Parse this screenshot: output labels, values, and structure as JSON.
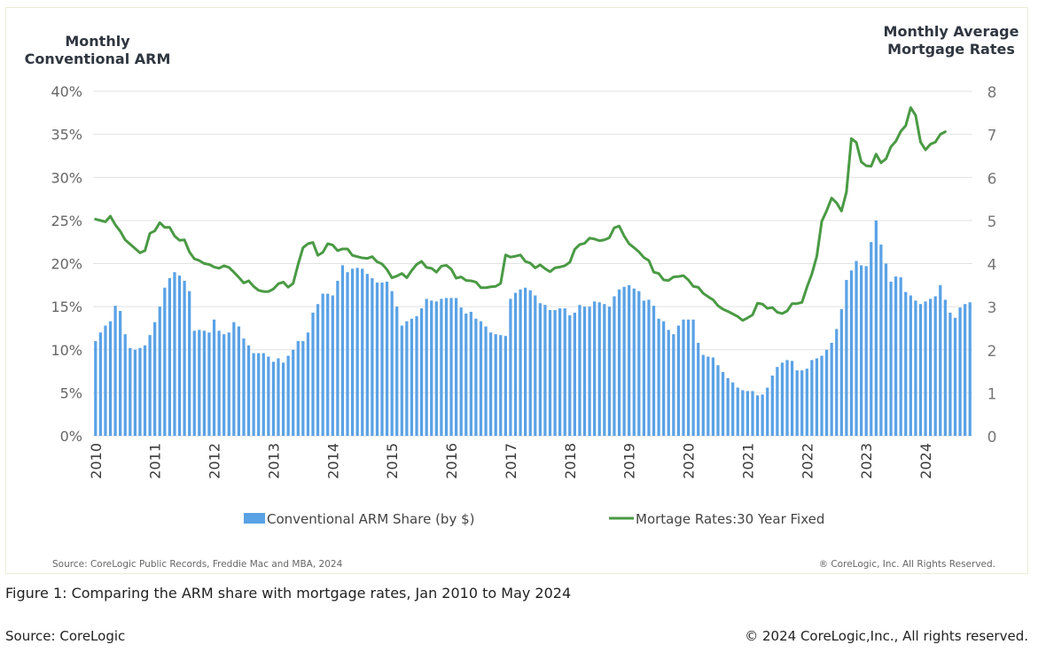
{
  "chart_data": {
    "type": "bar+line",
    "left_axis_title": [
      "Monthly",
      "Conventional ARM"
    ],
    "right_axis_title": [
      "Monthly Average",
      "Mortgage Rates"
    ],
    "left_axis": {
      "min": 0,
      "max": 40,
      "ticks": [
        "0%",
        "5%",
        "10%",
        "15%",
        "20%",
        "25%",
        "30%",
        "35%",
        "40%"
      ]
    },
    "right_axis": {
      "min": 0,
      "max": 8,
      "ticks": [
        "0",
        "1",
        "2",
        "3",
        "4",
        "5",
        "6",
        "7",
        "8"
      ]
    },
    "x_axis": {
      "start": "Jan 2010",
      "end": "May 2024",
      "ticks": [
        "2010",
        "2011",
        "2012",
        "2013",
        "2014",
        "2015",
        "2016",
        "2017",
        "2018",
        "2019",
        "2020",
        "2021",
        "2022",
        "2023",
        "2024"
      ]
    },
    "legend": [
      "Conventional ARM Share (by $)",
      "Mortage Rates:30 Year Fixed"
    ],
    "colors": {
      "bars": "#5aa2e6",
      "line": "#4a9a44",
      "grid": "#e2e2e2",
      "axis_text": "#666666"
    },
    "series": [
      {
        "name": "Conventional ARM Share (by $)",
        "axis": "left",
        "values": [
          11,
          12,
          12.8,
          13.3,
          15.1,
          14.5,
          11.8,
          10.2,
          10,
          10.2,
          10.5,
          11.7,
          13.2,
          15,
          17.2,
          18.3,
          19,
          18.6,
          18,
          16.8,
          12.2,
          12.3,
          12.2,
          12,
          13.5,
          12.2,
          11.8,
          12,
          13.2,
          12.7,
          11.3,
          10.5,
          9.6,
          9.6,
          9.6,
          9.2,
          8.6,
          9,
          8.5,
          9.3,
          10,
          11,
          11,
          12,
          14.3,
          15.3,
          16.5,
          16.5,
          16.3,
          18,
          19.8,
          19,
          19.4,
          19.5,
          19.4,
          18.8,
          18.3,
          17.8,
          17.8,
          17.9,
          16.8,
          15,
          12.8,
          13.3,
          13.6,
          13.9,
          14.8,
          15.9,
          15.7,
          15.6,
          15.9,
          16,
          16,
          16,
          14.9,
          14.2,
          14.4,
          13.6,
          13.3,
          12.7,
          12,
          11.8,
          11.7,
          11.6,
          15.9,
          16.6,
          17,
          17.2,
          16.9,
          16.3,
          15.4,
          15.2,
          14.6,
          14.6,
          14.8,
          14.8,
          14,
          14.3,
          15.2,
          15,
          15,
          15.6,
          15.5,
          15.3,
          15,
          16.2,
          17,
          17.3,
          17.5,
          17.1,
          16.8,
          15.7,
          15.8,
          15.1,
          13.6,
          13.3,
          12.3,
          11.8,
          12.8,
          13.5,
          13.5,
          13.5,
          10.8,
          9.4,
          9.2,
          9.1,
          8.2,
          7.4,
          6.7,
          6.2,
          5.6,
          5.3,
          5.2,
          5.2,
          4.7,
          4.8,
          5.6,
          7,
          8,
          8.5,
          8.8,
          8.7,
          7.6,
          7.6,
          7.8,
          8.8,
          9,
          9.3,
          10,
          10.8,
          12.4,
          14.7,
          18.1,
          19.2,
          20.3,
          19.8,
          19.7,
          22.5,
          25,
          22.2,
          20,
          17.9,
          18.5,
          18.4,
          16.7,
          16.3,
          15.7,
          15.3,
          15.6,
          15.9,
          16.2,
          17.5,
          15.8,
          14.3,
          13.7,
          14.9,
          15.3,
          15.5
        ]
      },
      {
        "name": "Mortage Rates:30 Year Fixed",
        "axis": "right",
        "values": [
          5.03,
          5.0,
          4.97,
          5.1,
          4.9,
          4.75,
          4.55,
          4.45,
          4.35,
          4.25,
          4.3,
          4.7,
          4.76,
          4.95,
          4.84,
          4.84,
          4.64,
          4.54,
          4.55,
          4.27,
          4.11,
          4.07,
          4.0,
          3.98,
          3.92,
          3.89,
          3.95,
          3.91,
          3.8,
          3.68,
          3.55,
          3.6,
          3.47,
          3.38,
          3.35,
          3.35,
          3.41,
          3.53,
          3.57,
          3.45,
          3.54,
          3.98,
          4.37,
          4.46,
          4.49,
          4.19,
          4.26,
          4.46,
          4.43,
          4.3,
          4.34,
          4.34,
          4.19,
          4.16,
          4.13,
          4.12,
          4.16,
          4.04,
          3.99,
          3.86,
          3.67,
          3.71,
          3.77,
          3.67,
          3.84,
          3.98,
          4.05,
          3.91,
          3.89,
          3.8,
          3.94,
          3.96,
          3.87,
          3.66,
          3.69,
          3.61,
          3.6,
          3.57,
          3.44,
          3.44,
          3.46,
          3.47,
          3.54,
          4.2,
          4.15,
          4.17,
          4.2,
          4.05,
          4.01,
          3.9,
          3.97,
          3.88,
          3.81,
          3.9,
          3.92,
          3.95,
          4.03,
          4.33,
          4.44,
          4.47,
          4.59,
          4.57,
          4.53,
          4.55,
          4.6,
          4.83,
          4.87,
          4.64,
          4.46,
          4.37,
          4.27,
          4.14,
          4.07,
          3.8,
          3.77,
          3.62,
          3.61,
          3.69,
          3.7,
          3.72,
          3.62,
          3.47,
          3.45,
          3.31,
          3.23,
          3.16,
          3.02,
          2.94,
          2.89,
          2.83,
          2.77,
          2.68,
          2.74,
          2.81,
          3.08,
          3.06,
          2.96,
          2.98,
          2.87,
          2.84,
          2.9,
          3.07,
          3.07,
          3.1,
          3.45,
          3.76,
          4.17,
          4.98,
          5.23,
          5.52,
          5.41,
          5.22,
          5.66,
          6.9,
          6.81,
          6.36,
          6.27,
          6.26,
          6.54,
          6.34,
          6.43,
          6.71,
          6.84,
          7.07,
          7.2,
          7.62,
          7.44,
          6.82,
          6.64,
          6.77,
          6.82,
          7.0,
          7.06
        ]
      }
    ],
    "source_note": "Source: CoreLogic Public Records, Freddie Mac and MBA, 2024",
    "copyright_note": "® CoreLogic, Inc. All Rights Reserved."
  },
  "caption": "Figure 1: Comparing the ARM share with mortgage rates, Jan 2010 to May 2024",
  "footer": {
    "source": "Source: CoreLogic",
    "copyright": "© 2024 CoreLogic,Inc., All rights reserved."
  }
}
